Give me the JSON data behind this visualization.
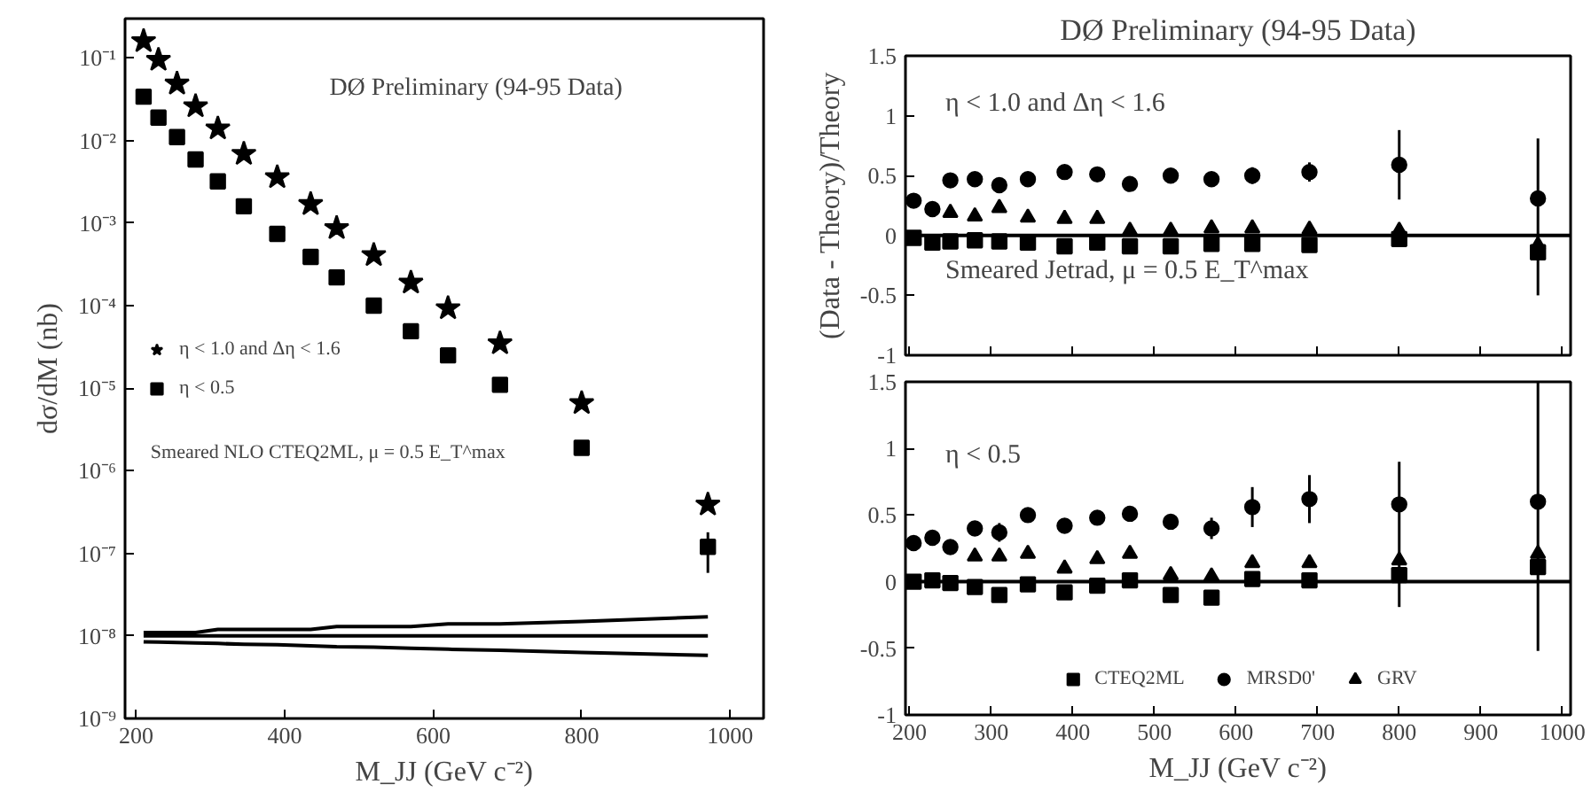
{
  "chart_data": [
    {
      "type": "scatter",
      "ylabel": "dσ/dM (nb)",
      "xlabel": "M_JJ (GeV c⁻²)",
      "log": "y",
      "xlim": [
        185,
        1045
      ],
      "xticks": [
        200,
        400,
        600,
        800,
        1000
      ],
      "ylim": [
        1e-09,
        0.3
      ],
      "yticks": [
        {
          "value": 1e-09,
          "label": "10⁻⁹"
        },
        {
          "value": 1e-08,
          "label": "10⁻⁸"
        },
        {
          "value": 1e-07,
          "label": "10⁻⁷"
        },
        {
          "value": 1e-06,
          "label": "10⁻⁶"
        },
        {
          "value": 1e-05,
          "label": "10⁻⁵"
        },
        {
          "value": 0.0001,
          "label": "10⁻⁴"
        },
        {
          "value": 0.001,
          "label": "10⁻³"
        },
        {
          "value": 0.01,
          "label": "10⁻²"
        },
        {
          "value": 0.1,
          "label": "10⁻¹"
        }
      ],
      "annotations": [
        "DØ Preliminary (94-95 Data)",
        "Smeared NLO CTEQ2ML, μ = 0.5 E_T^max"
      ],
      "legend": "left",
      "grid": false,
      "x": [
        210,
        230,
        255,
        280,
        310,
        345,
        390,
        435,
        470,
        520,
        570,
        620,
        690,
        800,
        970
      ],
      "series": [
        {
          "name": "η < 1.0 and Δη < 1.6",
          "marker": "star",
          "color": "#000000",
          "values": [
            0.16,
            0.095,
            0.049,
            0.026,
            0.014,
            0.0069,
            0.0036,
            0.0017,
            0.00087,
            0.00041,
            0.00019,
            9.3e-05,
            3.5e-05,
            6.6e-06,
            3.9e-07
          ]
        },
        {
          "name": "η < 0.5",
          "marker": "square",
          "color": "#000000",
          "values": [
            0.034,
            0.019,
            0.011,
            0.0059,
            0.0032,
            0.0016,
            0.00074,
            0.00039,
            0.00022,
            0.0001,
            4.9e-05,
            2.5e-05,
            1.1e-05,
            1.9e-06,
            1.2e-07
          ],
          "errors": [
            null,
            null,
            null,
            null,
            null,
            null,
            null,
            null,
            null,
            null,
            null,
            null,
            null,
            null,
            [
              5.8e-08,
              1.8e-07
            ]
          ]
        },
        {
          "type": "line",
          "color": "#000000",
          "values": [
            1.1e-08,
            1.1e-08,
            1.1e-08,
            1.1e-08,
            1.2e-08,
            1.2e-08,
            1.2e-08,
            1.2e-08,
            1.3e-08,
            1.3e-08,
            1.3e-08,
            1.4e-08,
            1.4e-08,
            1.5e-08,
            1.7e-08
          ]
        },
        {
          "type": "line",
          "color": "#000000",
          "values": [
            1e-08,
            1e-08,
            1e-08,
            1e-08,
            1e-08,
            1e-08,
            1e-08,
            1e-08,
            1e-08,
            1e-08,
            1e-08,
            1e-08,
            1e-08,
            1e-08,
            1e-08
          ]
        },
        {
          "type": "line",
          "color": "#000000",
          "values": [
            8.5e-09,
            8.4e-09,
            8.3e-09,
            8.2e-09,
            8.1e-09,
            7.9e-09,
            7.8e-09,
            7.6e-09,
            7.4e-09,
            7.3e-09,
            7.1e-09,
            6.9e-09,
            6.7e-09,
            6.3e-09,
            5.8e-09
          ]
        }
      ]
    },
    {
      "type": "scatter",
      "title": "DØ Preliminary (94-95 Data)",
      "ylabel": "(Data - Theory)/Theory",
      "tick_labels": "y",
      "xlim": [
        195,
        1010
      ],
      "xticks": [
        200,
        300,
        400,
        500,
        600,
        700,
        800,
        900,
        1000
      ],
      "ylim": [
        -1,
        1.5
      ],
      "yticks": [
        -1,
        -0.5,
        0,
        0.5,
        1,
        1.5
      ],
      "grid": false,
      "annotations": [
        "η < 1.0 and Δη < 1.6",
        "Smeared Jetrad, μ = 0.5 E_T^max"
      ],
      "ref_lines": [
        {
          "axis": "y",
          "value": 0,
          "color": "#000000"
        }
      ],
      "x": [
        205,
        228,
        250,
        280,
        310,
        345,
        390,
        430,
        470,
        520,
        570,
        620,
        690,
        800,
        970
      ],
      "series": [
        {
          "marker": "square",
          "color": "#000000",
          "values": [
            -0.02,
            -0.06,
            -0.05,
            -0.04,
            -0.05,
            -0.06,
            -0.09,
            -0.06,
            -0.09,
            -0.09,
            -0.07,
            -0.07,
            -0.08,
            -0.03,
            -0.14
          ]
        },
        {
          "marker": "circle",
          "color": "#000000",
          "values": [
            0.29,
            0.22,
            0.46,
            0.47,
            0.42,
            0.47,
            0.53,
            0.51,
            0.43,
            0.5,
            0.47,
            0.5,
            0.53,
            0.59,
            0.31
          ],
          "errors": [
            null,
            null,
            0.06,
            null,
            null,
            null,
            null,
            null,
            null,
            null,
            0.05,
            0.07,
            0.08,
            [
              0.3,
              0.88
            ],
            [
              -0.5,
              0.81
            ]
          ]
        },
        {
          "marker": "triangle",
          "color": "#000000",
          "values": [
            null,
            null,
            0.19,
            0.16,
            0.23,
            0.15,
            0.14,
            0.14,
            0.04,
            0.04,
            0.06,
            0.06,
            0.05,
            0.04,
            -0.08
          ]
        }
      ]
    },
    {
      "type": "scatter",
      "xlabel": "M_JJ (GeV c⁻²)",
      "xlim": [
        195,
        1010
      ],
      "xticks": [
        200,
        300,
        400,
        500,
        600,
        700,
        800,
        900,
        1000
      ],
      "ylim": [
        -1,
        1.5
      ],
      "yticks": [
        -1,
        -0.5,
        0,
        0.5,
        1,
        1.5
      ],
      "grid": false,
      "legend": "bottom",
      "annotations": [
        "η < 0.5"
      ],
      "ref_lines": [
        {
          "axis": "y",
          "value": 0,
          "color": "#000000"
        }
      ],
      "x": [
        205,
        228,
        250,
        280,
        310,
        345,
        390,
        430,
        470,
        520,
        570,
        620,
        690,
        800,
        970
      ],
      "series": [
        {
          "name": "CTEQ2ML",
          "marker": "square",
          "color": "#000000",
          "values": [
            0,
            0.01,
            -0.01,
            -0.04,
            -0.1,
            -0.02,
            -0.08,
            -0.03,
            0.01,
            -0.1,
            -0.12,
            0.02,
            0.01,
            0.05,
            0.11
          ]
        },
        {
          "name": "MRSD0'",
          "marker": "circle",
          "color": "#000000",
          "values": [
            0.29,
            0.33,
            0.26,
            0.4,
            0.37,
            0.5,
            0.42,
            0.48,
            0.51,
            0.45,
            0.4,
            0.56,
            0.62,
            0.58,
            0.6
          ],
          "errors": [
            null,
            null,
            null,
            0.05,
            0.07,
            null,
            null,
            null,
            null,
            0.05,
            0.08,
            0.15,
            0.18,
            [
              -0.19,
              0.9
            ],
            [
              -0.52,
              1.5
            ]
          ]
        },
        {
          "name": "GRV",
          "marker": "triangle",
          "color": "#000000",
          "values": [
            null,
            null,
            null,
            0.19,
            0.19,
            0.21,
            0.1,
            0.17,
            0.21,
            0.05,
            0.04,
            0.14,
            0.14,
            0.16,
            0.21
          ]
        }
      ]
    }
  ]
}
